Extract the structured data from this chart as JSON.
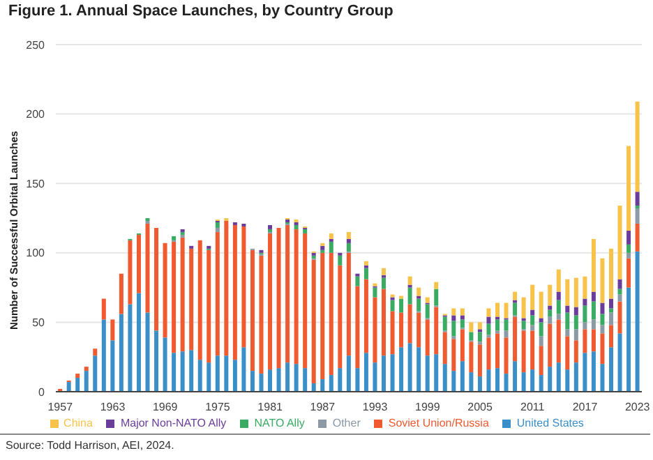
{
  "chart_data": {
    "type": "bar",
    "title": "Figure 1. Annual Space Launches, by Country Group",
    "ylabel": "Number of Successful Orbital Launches",
    "categories": [
      "1957",
      null,
      null,
      null,
      null,
      null,
      "1963",
      null,
      null,
      null,
      null,
      null,
      "1969",
      null,
      null,
      null,
      null,
      null,
      "1975",
      null,
      null,
      null,
      null,
      null,
      "1981",
      null,
      null,
      null,
      null,
      null,
      "1987",
      null,
      null,
      null,
      null,
      null,
      "1993",
      null,
      null,
      null,
      null,
      null,
      "1999",
      null,
      null,
      null,
      null,
      null,
      "2005",
      null,
      null,
      null,
      null,
      null,
      "2011",
      null,
      null,
      null,
      null,
      null,
      "2017",
      null,
      null,
      null,
      null,
      null,
      "2023"
    ],
    "series": [
      {
        "name": "United States",
        "color": "#3a8fc9",
        "values": [
          0,
          7,
          10,
          15,
          26,
          52,
          37,
          56,
          63,
          71,
          57,
          44,
          39,
          28,
          29,
          30,
          23,
          21,
          26,
          26,
          23,
          32,
          15,
          13,
          16,
          17,
          21,
          20,
          17,
          6,
          9,
          12,
          17,
          26,
          17,
          28,
          21,
          26,
          27,
          32,
          35,
          32,
          26,
          27,
          20,
          15,
          22,
          14,
          11,
          16,
          17,
          13,
          22,
          14,
          16,
          12,
          18,
          21,
          16,
          21,
          28,
          29,
          20,
          32,
          42,
          75,
          101
        ]
      },
      {
        "name": "Soviet Union/Russia",
        "color": "#ef5a30",
        "values": [
          2,
          1,
          3,
          3,
          5,
          15,
          15,
          29,
          46,
          42,
          64,
          74,
          68,
          80,
          82,
          73,
          86,
          81,
          89,
          97,
          97,
          87,
          87,
          85,
          98,
          101,
          99,
          97,
          97,
          89,
          91,
          88,
          74,
          74,
          59,
          53,
          47,
          48,
          31,
          25,
          28,
          25,
          26,
          34,
          23,
          23,
          23,
          22,
          23,
          23,
          25,
          26,
          32,
          30,
          28,
          21,
          31,
          31,
          24,
          16,
          17,
          16,
          22,
          16,
          23,
          21,
          20
        ]
      },
      {
        "name": "Other",
        "color": "#8b9aa5",
        "values": [
          0,
          0,
          0,
          0,
          0,
          0,
          0,
          0,
          0,
          0,
          2,
          0,
          0,
          1,
          2,
          0,
          0,
          0,
          3,
          0,
          0,
          0,
          1,
          1,
          1,
          0,
          1,
          0,
          0,
          1,
          0,
          0,
          0,
          1,
          0,
          0,
          0,
          0,
          0,
          0,
          0,
          1,
          1,
          1,
          1,
          2,
          1,
          1,
          2,
          2,
          2,
          5,
          1,
          1,
          4,
          7,
          5,
          4,
          5,
          8,
          5,
          7,
          6,
          9,
          5,
          4,
          11
        ]
      },
      {
        "name": "NATO Ally",
        "color": "#3aab62",
        "values": [
          0,
          0,
          0,
          0,
          0,
          0,
          0,
          0,
          1,
          1,
          2,
          0,
          0,
          3,
          2,
          0,
          0,
          1,
          4,
          0,
          0,
          0,
          0,
          1,
          2,
          0,
          1,
          3,
          3,
          2,
          2,
          8,
          7,
          6,
          7,
          8,
          7,
          8,
          8,
          10,
          12,
          9,
          10,
          12,
          10,
          11,
          6,
          6,
          7,
          8,
          8,
          8,
          9,
          6,
          7,
          10,
          5,
          10,
          12,
          10,
          12,
          13,
          8,
          3,
          4,
          6,
          2
        ]
      },
      {
        "name": "Major Non-NATO Ally",
        "color": "#6a3d9a",
        "values": [
          0,
          0,
          0,
          0,
          0,
          0,
          0,
          0,
          0,
          0,
          0,
          0,
          0,
          0,
          2,
          2,
          0,
          2,
          1,
          0,
          2,
          2,
          0,
          2,
          3,
          0,
          2,
          2,
          1,
          2,
          3,
          2,
          2,
          3,
          2,
          2,
          1,
          2,
          2,
          0,
          2,
          2,
          1,
          0,
          1,
          4,
          3,
          0,
          2,
          5,
          2,
          1,
          2,
          2,
          4,
          3,
          3,
          6,
          5,
          6,
          5,
          7,
          8,
          7,
          7,
          10,
          10
        ]
      },
      {
        "name": "China",
        "color": "#f7c34a",
        "values": [
          0,
          0,
          0,
          0,
          0,
          0,
          0,
          0,
          0,
          0,
          0,
          0,
          0,
          0,
          0,
          0,
          0,
          0,
          1,
          2,
          0,
          0,
          0,
          0,
          0,
          0,
          1,
          2,
          1,
          1,
          2,
          4,
          0,
          5,
          0,
          3,
          2,
          5,
          2,
          2,
          6,
          6,
          4,
          5,
          1,
          5,
          5,
          7,
          5,
          6,
          10,
          11,
          6,
          15,
          18,
          19,
          15,
          16,
          19,
          21,
          16,
          38,
          32,
          36,
          53,
          61,
          65
        ]
      }
    ],
    "stacked": true,
    "ylim": [
      0,
      250
    ],
    "yticks": [
      0,
      50,
      100,
      150,
      200,
      250
    ],
    "grid": "y",
    "legend": "bottom",
    "annotations": [
      "Source: Todd Harrison, AEI, 2024."
    ]
  }
}
